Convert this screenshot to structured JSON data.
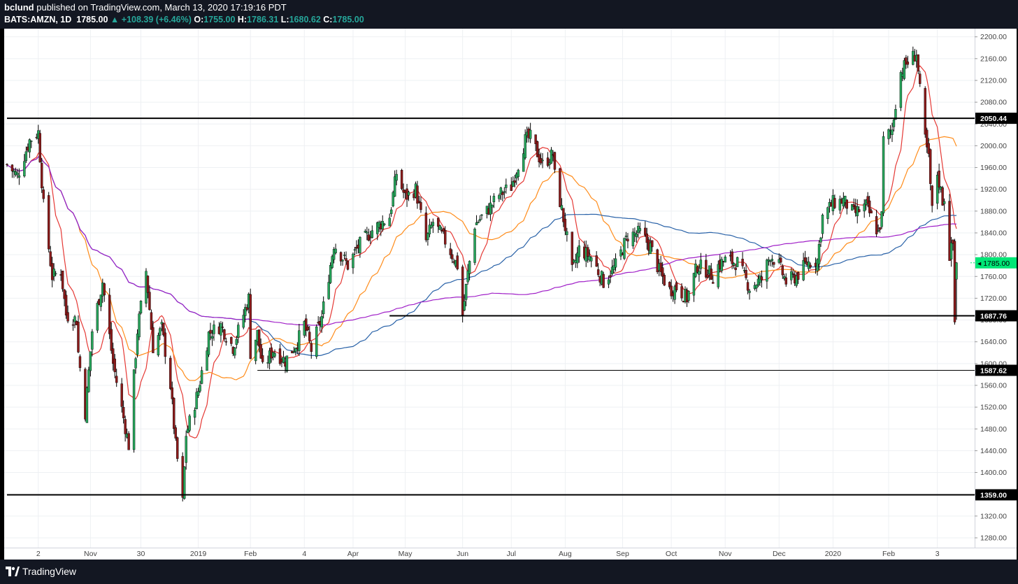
{
  "header": {
    "author": "bclund",
    "published_text": "published on TradingView.com, March 13, 2020 17:19:16 PDT",
    "symbol": "BATS:AMZN, 1D",
    "last": "1785.00",
    "change": "+108.39 (+6.46%)",
    "open_label": "O:",
    "open": "1755.00",
    "high_label": "H:",
    "high": "1786.31",
    "low_label": "L:",
    "low": "1680.62",
    "close_label": "C:",
    "close": "1785.00"
  },
  "footer": {
    "brand": "TradingView"
  },
  "colors": {
    "up": "#26a65b",
    "down": "#8b1a1a",
    "ma_red": "#e53935",
    "ma_orange": "#ff8c1a",
    "ma_blue": "#2962a8",
    "ma_purple": "#a020c8",
    "current": "#00e676"
  },
  "chart_data": {
    "type": "candlestick",
    "y_axis": {
      "ticks": [
        1280,
        1320,
        1360,
        1400,
        1440,
        1480,
        1520,
        1560,
        1600,
        1640,
        1680,
        1720,
        1760,
        1800,
        1840,
        1880,
        1920,
        1960,
        2000,
        2040,
        2080,
        2120,
        2160,
        2200
      ],
      "ylim": [
        1262,
        2215
      ]
    },
    "x_axis": {
      "start_date": "2018-09-14",
      "end_date": "2020-03-13",
      "labels": [
        {
          "date": "2018-10-02",
          "text": "2"
        },
        {
          "date": "2018-11-01",
          "text": "Nov"
        },
        {
          "date": "2018-11-30",
          "text": "30"
        },
        {
          "date": "2019-01-02",
          "text": "2019"
        },
        {
          "date": "2019-02-01",
          "text": "Feb"
        },
        {
          "date": "2019-03-04",
          "text": "4"
        },
        {
          "date": "2019-04-01",
          "text": "Apr"
        },
        {
          "date": "2019-05-01",
          "text": "May"
        },
        {
          "date": "2019-06-03",
          "text": "Jun"
        },
        {
          "date": "2019-07-01",
          "text": "Jul"
        },
        {
          "date": "2019-08-01",
          "text": "Aug"
        },
        {
          "date": "2019-09-03",
          "text": "Sep"
        },
        {
          "date": "2019-10-01",
          "text": "Oct"
        },
        {
          "date": "2019-11-01",
          "text": "Nov"
        },
        {
          "date": "2019-12-02",
          "text": "Dec"
        },
        {
          "date": "2020-01-02",
          "text": "2020"
        },
        {
          "date": "2020-02-03",
          "text": "Feb"
        },
        {
          "date": "2020-03-02",
          "text": "3"
        }
      ]
    },
    "price_path": [
      [
        "2018-09-14",
        1965
      ],
      [
        "2018-09-20",
        1945
      ],
      [
        "2018-09-27",
        2010
      ],
      [
        "2018-10-02",
        2025
      ],
      [
        "2018-10-05",
        1890
      ],
      [
        "2018-10-10",
        1760
      ],
      [
        "2018-10-15",
        1770
      ],
      [
        "2018-10-18",
        1690
      ],
      [
        "2018-10-24",
        1680
      ],
      [
        "2018-10-25",
        1620
      ],
      [
        "2018-10-29",
        1510
      ],
      [
        "2018-11-02",
        1660
      ],
      [
        "2018-11-08",
        1750
      ],
      [
        "2018-11-14",
        1600
      ],
      [
        "2018-11-20",
        1500
      ],
      [
        "2018-11-23",
        1450
      ],
      [
        "2018-11-28",
        1660
      ],
      [
        "2018-12-03",
        1770
      ],
      [
        "2018-12-07",
        1630
      ],
      [
        "2018-12-12",
        1665
      ],
      [
        "2018-12-17",
        1560
      ],
      [
        "2018-12-20",
        1450
      ],
      [
        "2018-12-24",
        1345
      ],
      [
        "2018-12-26",
        1470
      ],
      [
        "2019-01-02",
        1550
      ],
      [
        "2019-01-08",
        1655
      ],
      [
        "2019-01-15",
        1670
      ],
      [
        "2019-01-22",
        1630
      ],
      [
        "2019-01-31",
        1720
      ],
      [
        "2019-02-01",
        1620
      ],
      [
        "2019-02-05",
        1655
      ],
      [
        "2019-02-08",
        1590
      ],
      [
        "2019-02-14",
        1625
      ],
      [
        "2019-02-21",
        1605
      ],
      [
        "2019-02-28",
        1640
      ],
      [
        "2019-03-04",
        1672
      ],
      [
        "2019-03-08",
        1625
      ],
      [
        "2019-03-14",
        1685
      ],
      [
        "2019-03-21",
        1820
      ],
      [
        "2019-03-29",
        1780
      ],
      [
        "2019-04-04",
        1815
      ],
      [
        "2019-04-12",
        1845
      ],
      [
        "2019-04-22",
        1870
      ],
      [
        "2019-04-26",
        1950
      ],
      [
        "2019-05-01",
        1905
      ],
      [
        "2019-05-07",
        1920
      ],
      [
        "2019-05-13",
        1825
      ],
      [
        "2019-05-17",
        1860
      ],
      [
        "2019-05-24",
        1825
      ],
      [
        "2019-05-31",
        1780
      ],
      [
        "2019-06-03",
        1690
      ],
      [
        "2019-06-06",
        1765
      ],
      [
        "2019-06-10",
        1855
      ],
      [
        "2019-06-17",
        1880
      ],
      [
        "2019-06-24",
        1910
      ],
      [
        "2019-07-01",
        1925
      ],
      [
        "2019-07-09",
        2010
      ],
      [
        "2019-07-12",
        2015
      ],
      [
        "2019-07-19",
        1965
      ],
      [
        "2019-07-25",
        1985
      ],
      [
        "2019-07-26",
        1945
      ],
      [
        "2019-08-01",
        1850
      ],
      [
        "2019-08-05",
        1768
      ],
      [
        "2019-08-09",
        1810
      ],
      [
        "2019-08-16",
        1795
      ],
      [
        "2019-08-23",
        1750
      ],
      [
        "2019-08-30",
        1780
      ],
      [
        "2019-09-06",
        1835
      ],
      [
        "2019-09-13",
        1840
      ],
      [
        "2019-09-19",
        1815
      ],
      [
        "2019-09-24",
        1770
      ],
      [
        "2019-09-30",
        1735
      ],
      [
        "2019-10-04",
        1740
      ],
      [
        "2019-10-10",
        1720
      ],
      [
        "2019-10-16",
        1780
      ],
      [
        "2019-10-22",
        1770
      ],
      [
        "2019-10-25",
        1760
      ],
      [
        "2019-10-28",
        1780
      ],
      [
        "2019-11-01",
        1790
      ],
      [
        "2019-11-08",
        1785
      ],
      [
        "2019-11-15",
        1740
      ],
      [
        "2019-11-22",
        1755
      ],
      [
        "2019-11-27",
        1800
      ],
      [
        "2019-12-02",
        1780
      ],
      [
        "2019-12-06",
        1750
      ],
      [
        "2019-12-12",
        1760
      ],
      [
        "2019-12-18",
        1785
      ],
      [
        "2019-12-24",
        1790
      ],
      [
        "2019-12-27",
        1870
      ],
      [
        "2020-01-02",
        1895
      ],
      [
        "2020-01-08",
        1900
      ],
      [
        "2020-01-14",
        1875
      ],
      [
        "2020-01-21",
        1890
      ],
      [
        "2020-01-28",
        1840
      ],
      [
        "2020-01-30",
        1870
      ],
      [
        "2020-01-31",
        2010
      ],
      [
        "2020-02-05",
        2030
      ],
      [
        "2020-02-07",
        2080
      ],
      [
        "2020-02-10",
        2135
      ],
      [
        "2020-02-13",
        2150
      ],
      [
        "2020-02-19",
        2170
      ],
      [
        "2020-02-21",
        2100
      ],
      [
        "2020-02-24",
        2010
      ],
      [
        "2020-02-26",
        1975
      ],
      [
        "2020-02-28",
        1880
      ],
      [
        "2020-03-02",
        1950
      ],
      [
        "2020-03-05",
        1900
      ],
      [
        "2020-03-06",
        1905
      ],
      [
        "2020-03-09",
        1800
      ],
      [
        "2020-03-11",
        1820
      ],
      [
        "2020-03-12",
        1676
      ],
      [
        "2020-03-13",
        1785
      ]
    ],
    "moving_averages": [
      {
        "name": "",
        "color_key": "ma_red",
        "period": 10
      },
      {
        "name": "",
        "color_key": "ma_orange",
        "period": 30
      },
      {
        "name": "",
        "color_key": "ma_blue",
        "period": 100
      },
      {
        "name": "",
        "color_key": "ma_purple",
        "period": 200
      }
    ],
    "horizontal_lines": [
      {
        "value": 2050.44,
        "label": "2050.44",
        "start_date": "2018-09-14",
        "width": 2
      },
      {
        "value": 1687.76,
        "label": "1687.76",
        "start_date": "2019-04-22",
        "width": 2
      },
      {
        "value": 1587.62,
        "label": "1587.62",
        "start_date": "2019-02-05",
        "width": 1
      },
      {
        "value": 1359.0,
        "label": "1359.00",
        "start_date": "2018-09-14",
        "width": 2
      }
    ],
    "current_price": {
      "value": 1785.0,
      "label": "1785.00"
    },
    "last_bar": {
      "open": 1755.0,
      "high": 1786.31,
      "low": 1680.62,
      "close": 1785.0
    }
  }
}
